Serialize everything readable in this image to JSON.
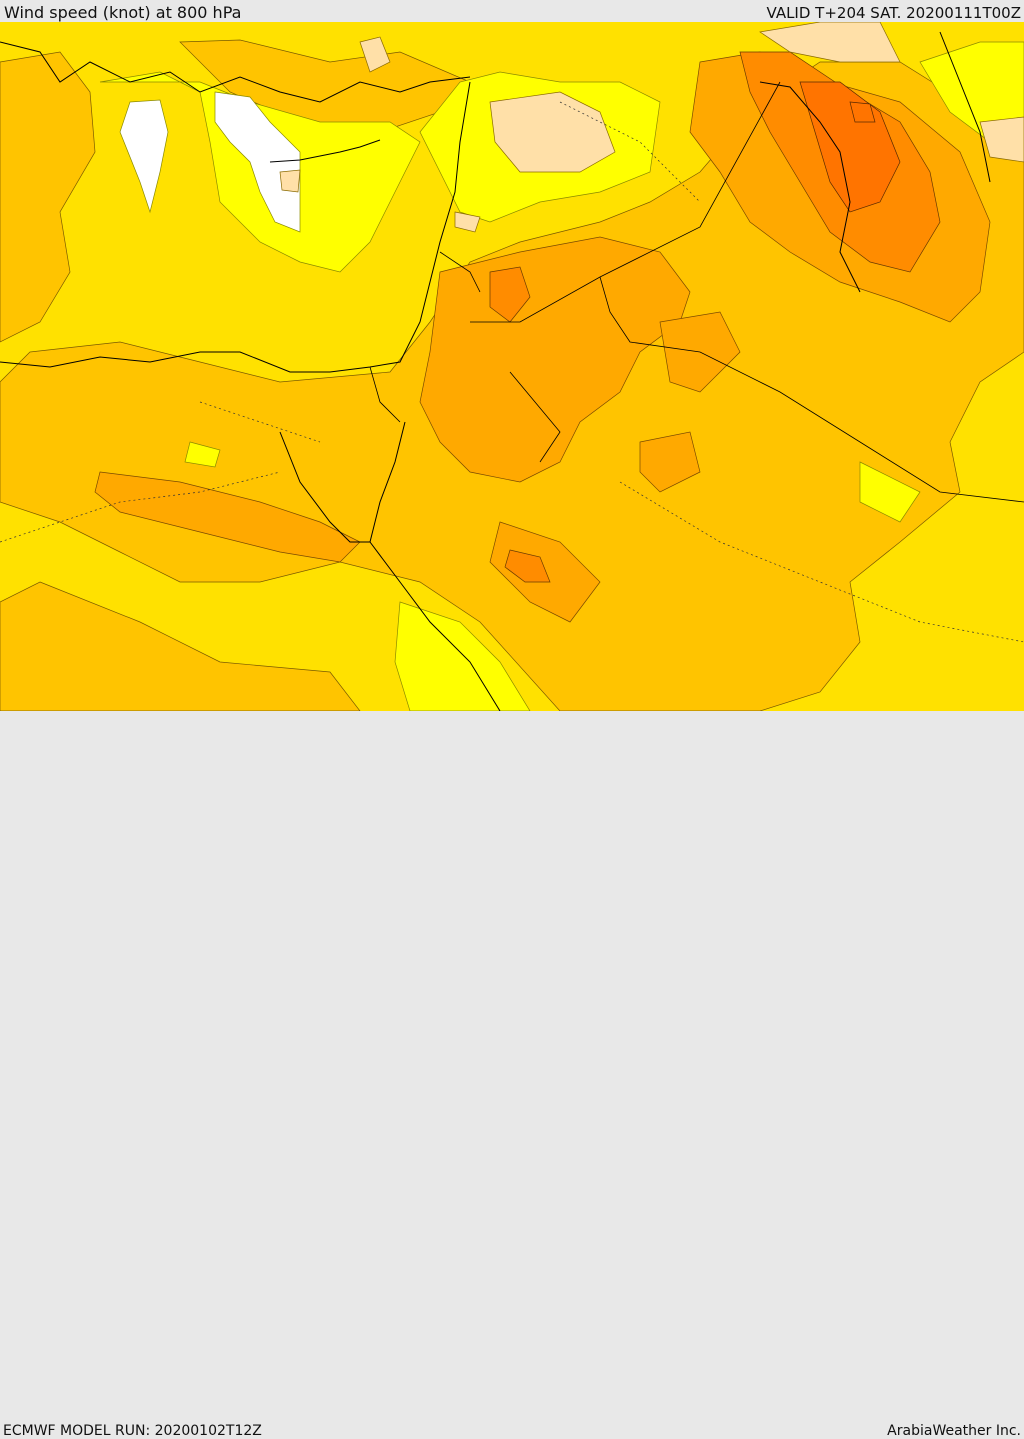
{
  "header": {
    "title": "Wind speed (knot) at 800 hPa",
    "valid": "VALID T+204 SAT. 20200111T00Z"
  },
  "footer": {
    "model_run": "ECMWF MODEL RUN: 20200102T12Z",
    "brand": "ArabiaWeather Inc."
  },
  "map": {
    "variable": "wind speed",
    "level": "800 hPa",
    "colors": {
      "white": "#ffffff",
      "yellow": "#ffff00",
      "gold": "#ffe100",
      "amber": "#ffc400",
      "orange_light": "#ffa900",
      "orange": "#ff8c00",
      "orange_dark": "#ff7400",
      "sand": "#ffe0a8"
    }
  }
}
